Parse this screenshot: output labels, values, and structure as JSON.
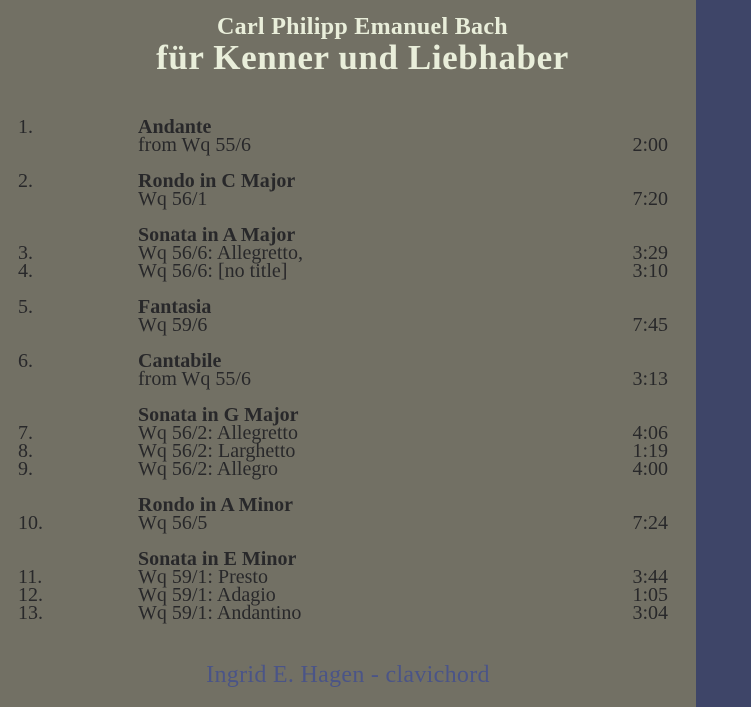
{
  "header": {
    "artist": "Carl Philipp Emanuel Bach",
    "album_title": "für Kenner und Liebhaber"
  },
  "tracklist": {
    "groups": [
      {
        "lines": [
          {
            "num": "1.",
            "text": "Andante",
            "bold": true,
            "time": ""
          },
          {
            "num": "",
            "text": "from Wq 55/6",
            "bold": false,
            "time": "2:00"
          }
        ]
      },
      {
        "lines": [
          {
            "num": "2.",
            "text": "Rondo in C Major",
            "bold": true,
            "time": ""
          },
          {
            "num": "",
            "text": "Wq 56/1",
            "bold": false,
            "time": "7:20"
          }
        ]
      },
      {
        "lines": [
          {
            "num": "",
            "text": "Sonata in A Major",
            "bold": true,
            "time": ""
          },
          {
            "num": "3.",
            "text": "Wq 56/6: Allegretto,",
            "bold": false,
            "time": "3:29"
          },
          {
            "num": "4.",
            "text": "Wq 56/6: [no title]",
            "bold": false,
            "time": "3:10"
          }
        ]
      },
      {
        "lines": [
          {
            "num": "5.",
            "text": "Fantasia",
            "bold": true,
            "time": ""
          },
          {
            "num": "",
            "text": "Wq 59/6",
            "bold": false,
            "time": "7:45"
          }
        ]
      },
      {
        "lines": [
          {
            "num": "6.",
            "text": "Cantabile",
            "bold": true,
            "time": ""
          },
          {
            "num": "",
            "text": "from Wq 55/6",
            "bold": false,
            "time": "3:13"
          }
        ]
      },
      {
        "lines": [
          {
            "num": "",
            "text": "Sonata in G Major",
            "bold": true,
            "time": ""
          },
          {
            "num": "7.",
            "text": "Wq 56/2: Allegretto",
            "bold": false,
            "time": "4:06"
          },
          {
            "num": "8.",
            "text": "Wq 56/2: Larghetto",
            "bold": false,
            "time": "1:19"
          },
          {
            "num": "9.",
            "text": "Wq 56/2: Allegro",
            "bold": false,
            "time": "4:00"
          }
        ]
      },
      {
        "lines": [
          {
            "num": "",
            "text": "Rondo in A Minor",
            "bold": true,
            "time": ""
          },
          {
            "num": "10.",
            "text": "Wq 56/5",
            "bold": false,
            "time": "7:24"
          }
        ]
      },
      {
        "lines": [
          {
            "num": "",
            "text": "Sonata in E Minor",
            "bold": true,
            "time": ""
          },
          {
            "num": "11.",
            "text": "Wq 59/1: Presto",
            "bold": false,
            "time": "3:44"
          },
          {
            "num": "12.",
            "text": "Wq 59/1: Adagio",
            "bold": false,
            "time": "1:05"
          },
          {
            "num": "13.",
            "text": "Wq 59/1: Andantino",
            "bold": false,
            "time": "3:04"
          }
        ]
      }
    ]
  },
  "footer": {
    "credit": "Ingrid E. Hagen - clavichord"
  },
  "colors": {
    "background": "#727064",
    "spine": "#3e4568",
    "title_text": "#e9eeda",
    "track_text": "#28282a",
    "credit_text": "#4a5487"
  }
}
